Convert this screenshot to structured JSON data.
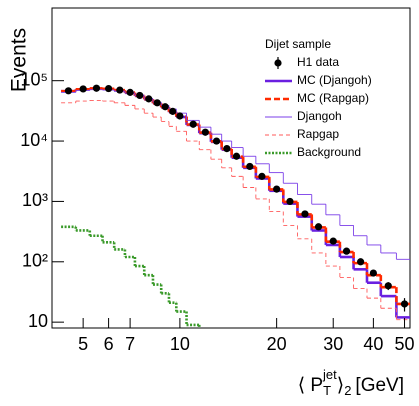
{
  "chart_data": {
    "type": "step",
    "legend_title": "Dijet sample",
    "legend": "top-right",
    "ylabel": "Events",
    "xlabel_parts": [
      "⟨ P",
      "T",
      "jet",
      "⟩",
      "2",
      "[GeV]"
    ],
    "xlog": true,
    "ylog": true,
    "xlim": [
      4,
      52
    ],
    "ylim": [
      8,
      1600000
    ],
    "xticks": [
      5,
      6,
      7,
      10,
      20,
      30,
      40,
      50
    ],
    "yticks": [
      10,
      {
        "value": 100,
        "label": "10²"
      },
      {
        "value": 1000,
        "label": "10³"
      },
      {
        "value": 10000,
        "label": "10⁴"
      },
      {
        "value": 100000,
        "label": "10⁵"
      }
    ],
    "x": [
      4.5,
      5,
      5.5,
      6,
      6.5,
      7,
      7.5,
      8,
      8.5,
      9,
      9.5,
      10,
      11,
      12,
      13,
      14,
      15,
      16.5,
      18,
      20,
      22,
      24.5,
      27,
      30,
      33,
      36.5,
      40,
      44.5,
      50
    ],
    "series": [
      {
        "name": "H1 data",
        "color": "#000000",
        "style": "points",
        "values": [
          68000,
          73000,
          75000,
          74000,
          70000,
          64000,
          57000,
          50000,
          43000,
          37000,
          31000,
          26000,
          19000,
          14000,
          10000,
          7500,
          5600,
          3800,
          2600,
          1600,
          1000,
          620,
          380,
          220,
          150,
          100,
          65,
          40,
          20
        ],
        "errors": [
          1400,
          1400,
          1400,
          1400,
          1300,
          1200,
          1100,
          1000,
          900,
          800,
          700,
          600,
          450,
          350,
          260,
          200,
          160,
          120,
          90,
          60,
          40,
          28,
          20,
          14,
          11,
          9,
          7,
          6,
          5
        ]
      },
      {
        "name": "MC (Djangoh)",
        "color": "#6a1fe0",
        "style": "step",
        "line": "solid",
        "weight": "thick",
        "values": [
          67000,
          72000,
          74000,
          73000,
          69000,
          63000,
          56000,
          49000,
          42000,
          36000,
          30000,
          25000,
          18500,
          13500,
          9700,
          7200,
          5300,
          3600,
          2400,
          1500,
          920,
          560,
          330,
          190,
          120,
          75,
          45,
          27,
          12
        ]
      },
      {
        "name": "MC (Rapgap)",
        "color": "#ff2a00",
        "style": "step",
        "line": "dashed",
        "weight": "thick",
        "values": [
          67000,
          72000,
          74500,
          73500,
          69500,
          63500,
          56500,
          49500,
          42500,
          36500,
          30500,
          25500,
          18800,
          13800,
          9900,
          7400,
          5500,
          3750,
          2550,
          1580,
          980,
          610,
          370,
          215,
          145,
          95,
          60,
          38,
          20
        ]
      },
      {
        "name": "Djangoh",
        "color": "#7b3fe8",
        "style": "step",
        "line": "solid",
        "weight": "thin",
        "values": [
          64000,
          69000,
          71000,
          70000,
          67000,
          62000,
          56000,
          50000,
          44000,
          39000,
          34000,
          29000,
          22000,
          17000,
          13000,
          10000,
          7800,
          5600,
          4200,
          3000,
          2000,
          1300,
          900,
          600,
          400,
          270,
          190,
          140,
          110
        ]
      },
      {
        "name": "Rapgap",
        "color": "#ff5a5a",
        "style": "step",
        "line": "dashed",
        "weight": "thin",
        "values": [
          43000,
          46000,
          47000,
          46000,
          43000,
          39000,
          34000,
          29000,
          25000,
          21000,
          17500,
          14500,
          10000,
          7200,
          5000,
          3600,
          2600,
          1700,
          1100,
          680,
          400,
          240,
          140,
          85,
          55,
          36,
          25,
          17,
          11
        ]
      },
      {
        "name": "Background",
        "color": "#3a9a2a",
        "style": "step",
        "line": "dotted",
        "weight": "thick",
        "values": [
          380,
          330,
          270,
          210,
          160,
          120,
          85,
          60,
          42,
          30,
          21,
          15,
          9,
          6,
          null,
          null,
          null,
          null,
          null,
          null,
          null,
          null,
          null,
          null,
          null,
          null,
          null,
          null,
          null
        ]
      }
    ]
  }
}
